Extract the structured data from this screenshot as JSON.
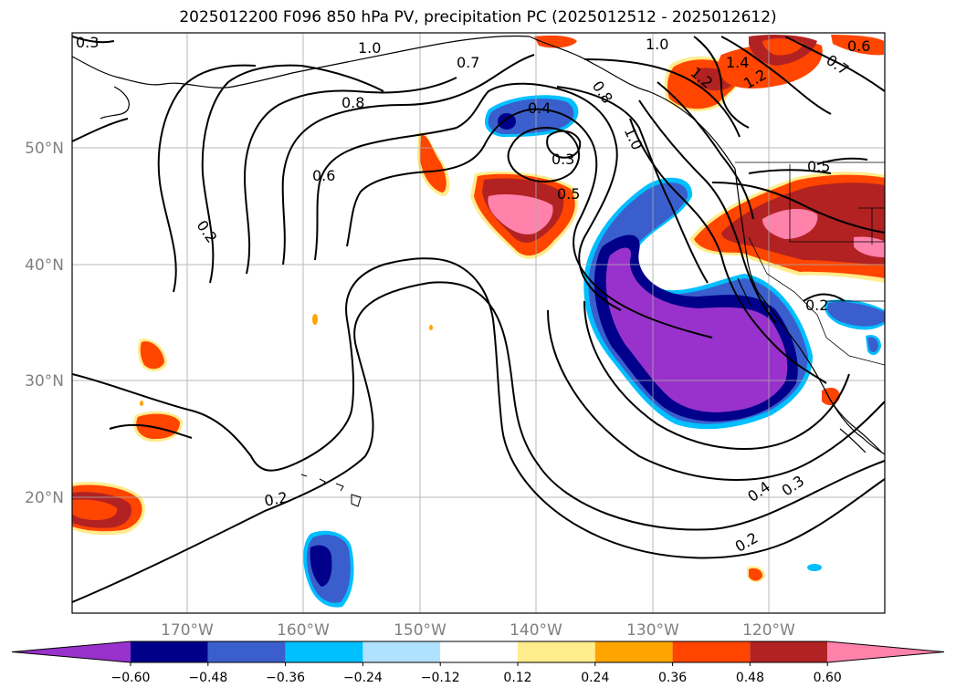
{
  "title": "2025012200 F096 850 hPa PV, precipitation PC (2025012512 - 2025012612)",
  "lat_labels": [
    "50°N",
    "40°N",
    "30°N",
    "20°N"
  ],
  "lon_labels": [
    "170°W",
    "160°W",
    "150°W",
    "140°W",
    "130°W",
    "120°W"
  ],
  "contour_labels": [
    "0.3",
    "1.0",
    "1.0",
    "0.7",
    "0.6",
    "0.8",
    "0.6",
    "0.2",
    "0.4",
    "0.3",
    "0.5",
    "0.8",
    "1.0",
    "1.4",
    "1.2",
    "1.2",
    "0.7",
    "0.5",
    "0.2",
    "0.2",
    "0.4",
    "0.3",
    "0.2"
  ],
  "colorbar": {
    "ticks": [
      "−0.60",
      "−0.48",
      "−0.36",
      "−0.24",
      "−0.12",
      "0.12",
      "0.24",
      "0.36",
      "0.48",
      "0.60"
    ],
    "colors": [
      "#9932cc",
      "#00008b",
      "#3a5fcd",
      "#00bfff",
      "#b0e2ff",
      "#ffffff",
      "#ffec8b",
      "#ffa500",
      "#ff4500",
      "#b22222",
      "#ff82ab"
    ]
  }
}
